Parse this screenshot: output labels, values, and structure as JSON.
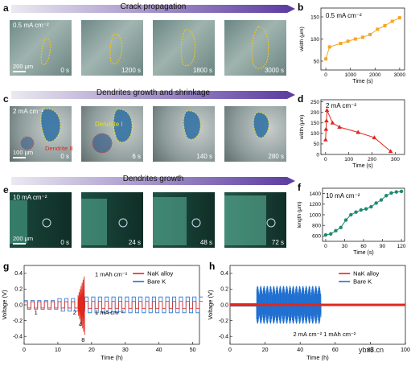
{
  "rows": {
    "a": {
      "letter": "a",
      "banner": "Crack propagation",
      "condition": "0.5 mA cm⁻²",
      "scale": "200 μm",
      "times": [
        "0 s",
        "1200 s",
        "1800 s",
        "3000 s"
      ]
    },
    "c": {
      "letter": "c",
      "banner": "Dendrites growth and shrinkage",
      "condition": "2 mA cm⁻²",
      "scale": "100 μm",
      "times": [
        "0 s",
        "6 s",
        "140 s",
        "280 s"
      ],
      "labels": [
        "Dendrite I",
        "Dendrite II"
      ]
    },
    "e": {
      "letter": "e",
      "banner": "Dendrites growth",
      "condition": "10 mA cm⁻²",
      "scale": "200 μm",
      "times": [
        "0 s",
        "24 s",
        "48 s",
        "72 s"
      ]
    }
  },
  "colors": {
    "banner_start": "#e8e6f0",
    "banner_end": "#5a3aa0",
    "orange": "#f5a623",
    "red": "#e1261c",
    "teal": "#1b8a6f",
    "blue": "#1f6fd1"
  },
  "chart_data": [
    {
      "id": "b",
      "letter": "b",
      "type": "line",
      "annotation": "0.5 mA cm⁻²",
      "xlabel": "Time (s)",
      "ylabel": "width (μm)",
      "xlim": [
        -200,
        3200
      ],
      "ylim": [
        30,
        170
      ],
      "xticks": [
        0,
        1000,
        2000,
        3000
      ],
      "yticks": [
        50,
        100,
        150
      ],
      "x": [
        0,
        150,
        600,
        900,
        1200,
        1500,
        1800,
        2100,
        2400,
        2700,
        3000
      ],
      "y": [
        55,
        82,
        90,
        95,
        100,
        104,
        110,
        122,
        130,
        140,
        148
      ],
      "color": "#f5a623"
    },
    {
      "id": "d",
      "letter": "d",
      "type": "line",
      "annotation": "2 mA cm⁻²",
      "xlabel": "Time (s)",
      "ylabel": "width (μm)",
      "xlim": [
        -20,
        340
      ],
      "ylim": [
        0,
        260
      ],
      "xticks": [
        0,
        100,
        200,
        300
      ],
      "yticks": [
        0,
        50,
        100,
        150,
        200,
        250
      ],
      "x": [
        0,
        2,
        4,
        6,
        30,
        60,
        140,
        210,
        280
      ],
      "y": [
        70,
        120,
        160,
        210,
        150,
        130,
        105,
        80,
        15
      ],
      "color": "#e1261c"
    },
    {
      "id": "f",
      "letter": "f",
      "type": "line",
      "annotation": "10 mA cm⁻²",
      "xlabel": "Time (s)",
      "ylabel": "length (μm)",
      "xlim": [
        -5,
        125
      ],
      "ylim": [
        500,
        1500
      ],
      "xticks": [
        0,
        30,
        60,
        90,
        120
      ],
      "yticks": [
        600,
        800,
        1000,
        1200,
        1400
      ],
      "x": [
        0,
        8,
        16,
        24,
        32,
        40,
        48,
        56,
        64,
        72,
        80,
        88,
        96,
        104,
        112,
        120
      ],
      "y": [
        620,
        640,
        700,
        760,
        900,
        1000,
        1050,
        1090,
        1110,
        1150,
        1220,
        1280,
        1360,
        1410,
        1430,
        1440
      ],
      "color": "#1b8a6f"
    },
    {
      "id": "g",
      "letter": "g",
      "type": "line",
      "annotation_top": "1 mAh cm⁻²",
      "annotation_bottom": "1 mA cm⁻²",
      "marks": [
        "1",
        "2",
        "4",
        "8"
      ],
      "xlabel": "Time (h)",
      "ylabel": "Voltage (V)",
      "xlim": [
        0,
        52
      ],
      "ylim": [
        -0.5,
        0.5
      ],
      "xticks": [
        0,
        10,
        20,
        30,
        40,
        50
      ],
      "yticks": [
        -0.4,
        -0.2,
        0.0,
        0.2,
        0.4
      ],
      "series": [
        {
          "name": "NaK alloy",
          "color": "#e1261c"
        },
        {
          "name": "Bare K",
          "color": "#1f6fd1"
        }
      ]
    },
    {
      "id": "h",
      "letter": "h",
      "type": "line",
      "annotation": "2 mA cm⁻² 1 mAh cm⁻²",
      "xlabel": "Time (h)",
      "ylabel": "Voltage (V)",
      "xlim": [
        0,
        100
      ],
      "ylim": [
        -0.5,
        0.5
      ],
      "xticks": [
        0,
        20,
        40,
        60,
        80,
        100
      ],
      "yticks": [
        -0.4,
        -0.2,
        0.0,
        0.2,
        0.4
      ],
      "series": [
        {
          "name": "NaK alloy",
          "color": "#e1261c"
        },
        {
          "name": "Bare K",
          "color": "#1f6fd1"
        }
      ]
    }
  ],
  "watermark": "ybx8.cn"
}
